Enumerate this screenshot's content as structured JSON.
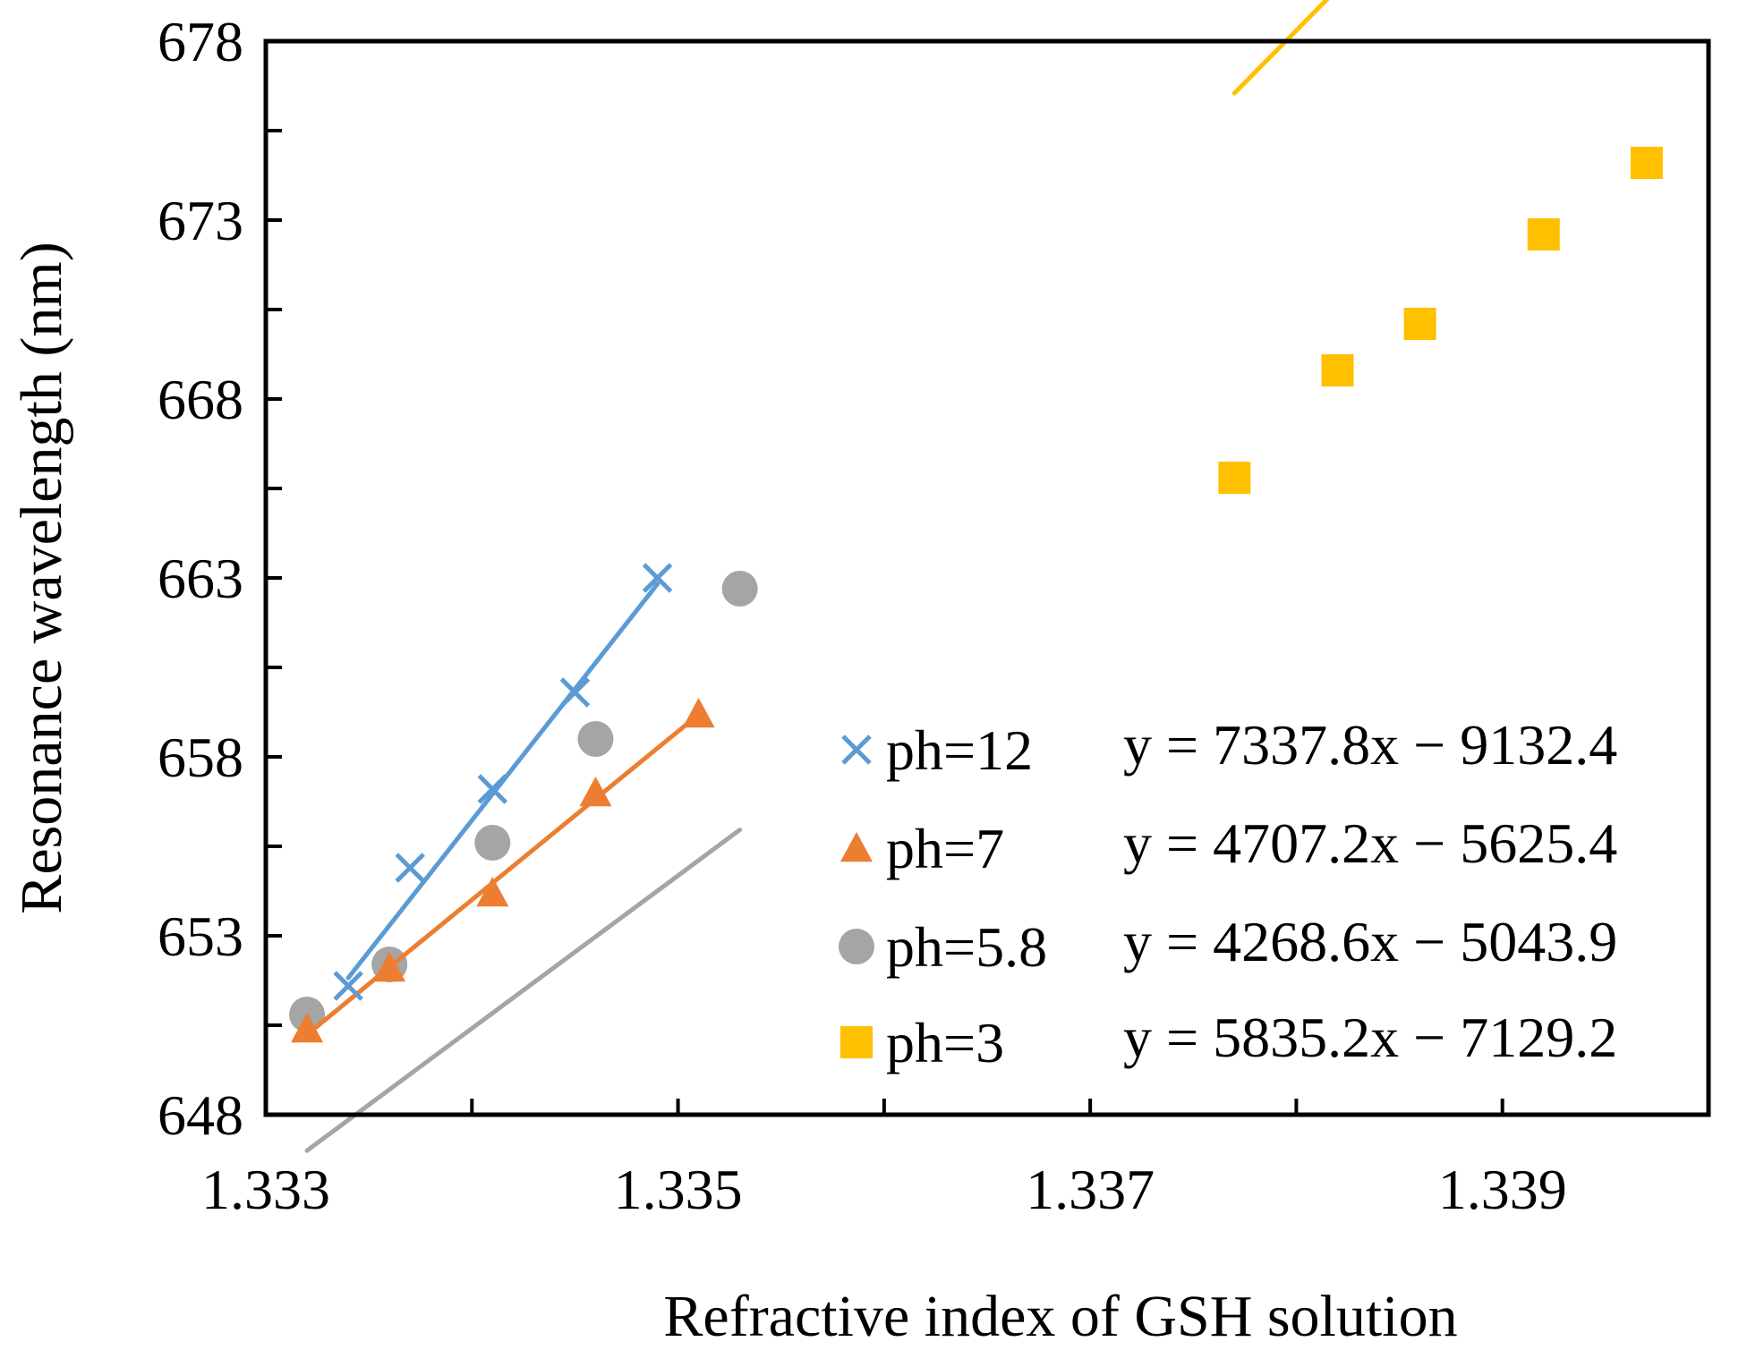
{
  "chart_data": {
    "type": "scatter",
    "xlabel": "Refractive index of GSH solution",
    "ylabel": "Resonance wavelength (nm)",
    "xlim": [
      1.333,
      1.34
    ],
    "ylim": [
      648,
      678
    ],
    "xticks": [
      1.333,
      1.334,
      1.335,
      1.336,
      1.337,
      1.338,
      1.339,
      1.34
    ],
    "xtick_labels": [
      "1.333",
      "",
      "1.335",
      "",
      "1.337",
      "",
      "1.339",
      ""
    ],
    "yticks": [
      648,
      650.5,
      653,
      655.5,
      658,
      660.5,
      663,
      665.5,
      668,
      670.5,
      673,
      675.5,
      678
    ],
    "ytick_labels": [
      "648",
      "",
      "653",
      "",
      "658",
      "",
      "663",
      "",
      "668",
      "",
      "673",
      "",
      "678"
    ],
    "legend_position": "right",
    "series": [
      {
        "name": "ph=12",
        "marker": "x",
        "color": "#5B9BD5",
        "x": [
          1.3334,
          1.3337,
          1.3341,
          1.3345,
          1.3349
        ],
        "y": [
          651.6,
          654.9,
          657.1,
          659.8,
          663.0
        ],
        "trendline": {
          "slope": 7337.8,
          "intercept": -9132.4,
          "x_range": [
            1.3334,
            1.3349
          ]
        },
        "equation": "y = 7337.8x − 9132.4"
      },
      {
        "name": "ph=7",
        "marker": "triangle",
        "color": "#ED7D31",
        "x": [
          1.3332,
          1.3336,
          1.3341,
          1.3346,
          1.3351
        ],
        "y": [
          650.4,
          652.1,
          654.2,
          657.0,
          659.2
        ],
        "trendline": {
          "slope": 4707.2,
          "intercept": -5625.4,
          "x_range": [
            1.3332,
            1.3351
          ]
        },
        "equation": "y = 4707.2x − 5625.4"
      },
      {
        "name": "ph=5.8",
        "marker": "circle",
        "color": "#A5A5A5",
        "x": [
          1.3332,
          1.3336,
          1.3341,
          1.3346,
          1.3353
        ],
        "y": [
          650.8,
          652.2,
          655.6,
          658.5,
          662.7
        ],
        "trendline": {
          "slope": 4268.6,
          "intercept": -5043.9,
          "x_range": [
            1.3332,
            1.3353
          ]
        },
        "equation": "y = 4268.6x − 5043.9"
      },
      {
        "name": "ph=3",
        "marker": "square",
        "color": "#FFC000",
        "x": [
          1.3377,
          1.3382,
          1.3386,
          1.3392,
          1.3397
        ],
        "y": [
          665.8,
          668.8,
          670.1,
          672.6,
          674.6
        ],
        "trendline": {
          "slope": 5835.2,
          "intercept": -7129.2,
          "x_range": [
            1.3377,
            1.3397
          ]
        },
        "equation": "y = 5835.2x − 7129.2"
      }
    ]
  }
}
